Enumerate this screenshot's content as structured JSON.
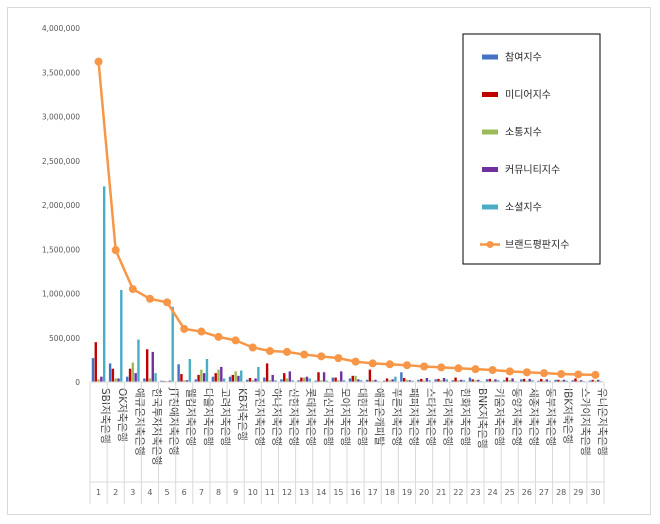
{
  "chart_data": {
    "type": "bar",
    "ylim": [
      0,
      4000000
    ],
    "yticks": [
      "0",
      "500,000",
      "1,000,000",
      "1,500,000",
      "2,000,000",
      "2,500,000",
      "3,000,000",
      "3,500,000",
      "4,000,000"
    ],
    "ytick_values": [
      0,
      500000,
      1000000,
      1500000,
      2000000,
      2500000,
      3000000,
      3500000,
      4000000
    ],
    "grid": false,
    "legend_position": "top-right",
    "categories": [
      "SBI저축은행",
      "OK저축은행",
      "애큐온저축은행",
      "한국투자저축은행",
      "JT친애저축은행",
      "웰컴저축은행",
      "다올저축은행",
      "고려저축은행",
      "KB저축은행",
      "유진저축은행",
      "하나저축은행",
      "신한저축은행",
      "롯데저축은행",
      "대신저축은행",
      "모아저축은행",
      "대한저축은행",
      "애큐온캐피탈",
      "푸른저축은행",
      "페퍼저축은행",
      "스타저축은행",
      "우리저축은행",
      "한화저축은행",
      "BNK저축은행",
      "키움저축은행",
      "동양저축은행",
      "세종저축은행",
      "동부저축은행",
      "IBK저축은행",
      "스카이저축은행",
      "유니온저축은행"
    ],
    "x_numbers": [
      "1",
      "2",
      "3",
      "4",
      "5",
      "6",
      "7",
      "8",
      "9",
      "10",
      "11",
      "12",
      "13",
      "14",
      "15",
      "16",
      "17",
      "18",
      "19",
      "20",
      "21",
      "22",
      "23",
      "24",
      "25",
      "26",
      "27",
      "28",
      "29",
      "30"
    ],
    "series": [
      {
        "name": "참여지수",
        "color": "#4472C4",
        "kind": "bar",
        "values": [
          270000,
          210000,
          60000,
          40000,
          15000,
          200000,
          30000,
          60000,
          60000,
          25000,
          50000,
          30000,
          20000,
          15000,
          50000,
          40000,
          25000,
          15000,
          110000,
          25000,
          30000,
          20000,
          50000,
          30000,
          20000,
          30000,
          15000,
          25000,
          20000,
          15000
        ]
      },
      {
        "name": "미디어지수",
        "color": "#C00000",
        "kind": "bar",
        "values": [
          450000,
          150000,
          150000,
          370000,
          10000,
          90000,
          80000,
          100000,
          80000,
          45000,
          210000,
          100000,
          50000,
          110000,
          50000,
          70000,
          140000,
          40000,
          45000,
          35000,
          35000,
          50000,
          30000,
          35000,
          50000,
          35000,
          35000,
          25000,
          40000,
          25000
        ]
      },
      {
        "name": "소통지수",
        "color": "#9BBB59",
        "kind": "bar",
        "values": [
          30000,
          40000,
          220000,
          40000,
          10000,
          20000,
          140000,
          140000,
          120000,
          20000,
          20000,
          40000,
          50000,
          20000,
          20000,
          70000,
          20000,
          20000,
          25000,
          15000,
          20000,
          20000,
          20000,
          15000,
          20000,
          15000,
          15000,
          15000,
          15000,
          15000
        ]
      },
      {
        "name": "커뮤니티지수",
        "color": "#7030A0",
        "kind": "bar",
        "values": [
          60000,
          40000,
          100000,
          340000,
          15000,
          20000,
          100000,
          170000,
          70000,
          40000,
          80000,
          120000,
          60000,
          110000,
          120000,
          30000,
          25000,
          30000,
          20000,
          45000,
          45000,
          25000,
          25000,
          30000,
          40000,
          35000,
          30000,
          25000,
          20000,
          25000
        ]
      },
      {
        "name": "소셜지수",
        "color": "#4BACC6",
        "kind": "bar",
        "values": [
          2210000,
          1040000,
          480000,
          100000,
          850000,
          260000,
          260000,
          40000,
          130000,
          170000,
          20000,
          20000,
          40000,
          15000,
          20000,
          20000,
          10000,
          60000,
          15000,
          20000,
          30000,
          20000,
          10000,
          20000,
          10000,
          20000,
          15000,
          15000,
          10000,
          10000
        ]
      },
      {
        "name": "브랜드평판지수",
        "color": "#F79646",
        "kind": "line",
        "values": [
          3620000,
          1490000,
          1050000,
          940000,
          900000,
          600000,
          570000,
          510000,
          470000,
          390000,
          350000,
          340000,
          310000,
          290000,
          270000,
          230000,
          210000,
          200000,
          190000,
          175000,
          165000,
          155000,
          145000,
          135000,
          120000,
          110000,
          100000,
          90000,
          85000,
          80000
        ]
      }
    ]
  }
}
